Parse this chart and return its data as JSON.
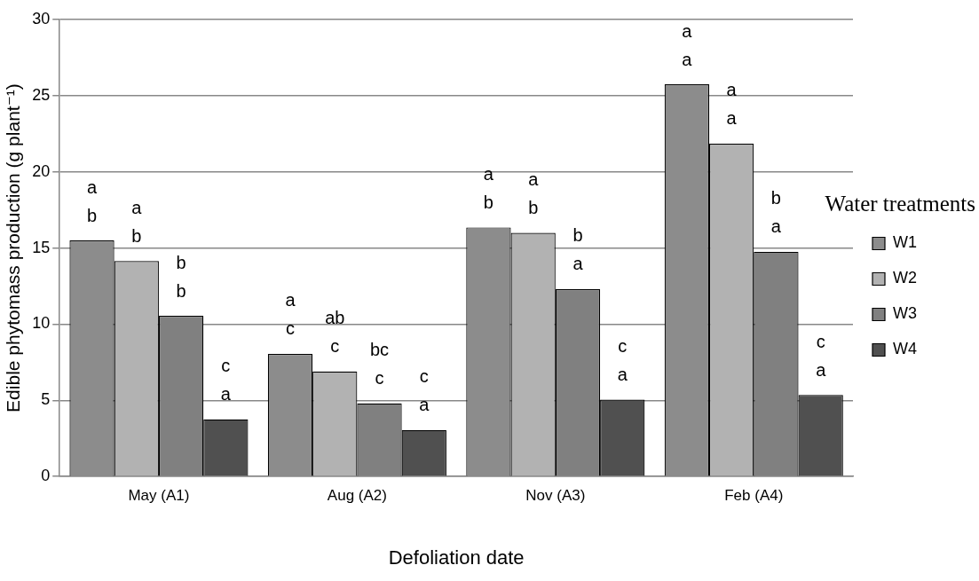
{
  "chart_data": {
    "type": "bar",
    "xlabel": "Defoliation date",
    "ylabel": "Edible phytomass production (g plant⁻¹)",
    "legend_title": "Water treatments",
    "legend": "right",
    "categories": [
      "May (A1)",
      "Aug (A2)",
      "Nov (A3)",
      "Feb (A4)"
    ],
    "series": [
      {
        "name": "W1",
        "color": "#8c8c8c",
        "values": [
          15.5,
          8.05,
          16.35,
          25.75
        ],
        "value_labels": [
          "a\nb",
          "a\nc",
          "a\nb",
          "a\na"
        ]
      },
      {
        "name": "W2",
        "color": "#b2b2b2",
        "values": [
          14.15,
          6.9,
          16.0,
          21.85
        ],
        "value_labels": [
          "a\nb",
          "ab\nc",
          "a\nb",
          "a\na"
        ]
      },
      {
        "name": "W3",
        "color": "#808080",
        "values": [
          10.55,
          4.8,
          12.3,
          14.75
        ],
        "value_labels": [
          "b\nb",
          "bc\nc",
          "b\na",
          "b\na"
        ]
      },
      {
        "name": "W4",
        "color": "#505050",
        "values": [
          3.75,
          3.05,
          5.05,
          5.35
        ],
        "value_labels": [
          "c\na",
          "c\na",
          "c\na",
          "c\na"
        ]
      }
    ],
    "ylim": [
      0,
      30
    ],
    "yticks": [
      0,
      5,
      10,
      15,
      20,
      25,
      30
    ],
    "grid": "y"
  }
}
